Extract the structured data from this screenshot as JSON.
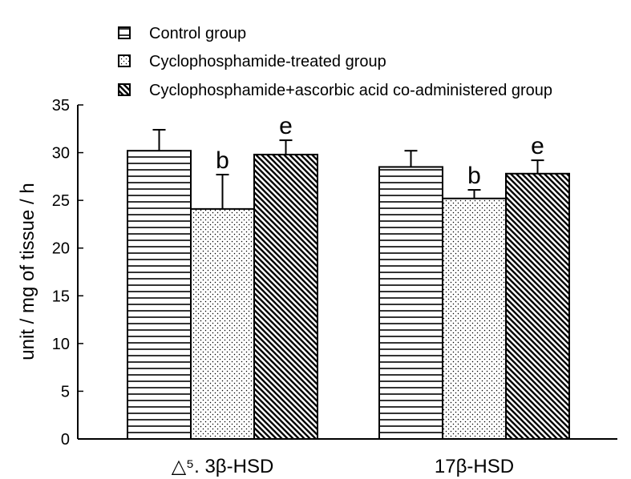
{
  "chart_data": {
    "type": "bar",
    "categories": [
      "△⁵. 3β-HSD",
      "17β-HSD"
    ],
    "series": [
      {
        "name": "Control group",
        "pattern": "horizontal",
        "values": [
          30.2,
          28.5
        ],
        "errors": [
          2.2,
          1.7
        ],
        "annotations": [
          "",
          ""
        ]
      },
      {
        "name": "Cyclophosphamide-treated group",
        "pattern": "dots",
        "values": [
          24.1,
          25.2
        ],
        "errors": [
          3.6,
          0.9
        ],
        "annotations": [
          "b",
          "b"
        ]
      },
      {
        "name": "Cyclophosphamide+ascorbic acid co-administered group",
        "pattern": "diagonal",
        "values": [
          29.8,
          27.8
        ],
        "errors": [
          1.5,
          1.4
        ],
        "annotations": [
          "e",
          "e"
        ]
      }
    ],
    "ylabel": "unit / mg of tissue / h",
    "xlabel": "",
    "ylim": [
      0,
      35
    ],
    "yticks": [
      0,
      5,
      10,
      15,
      20,
      25,
      30,
      35
    ],
    "legend_position": "top",
    "grid": false
  }
}
